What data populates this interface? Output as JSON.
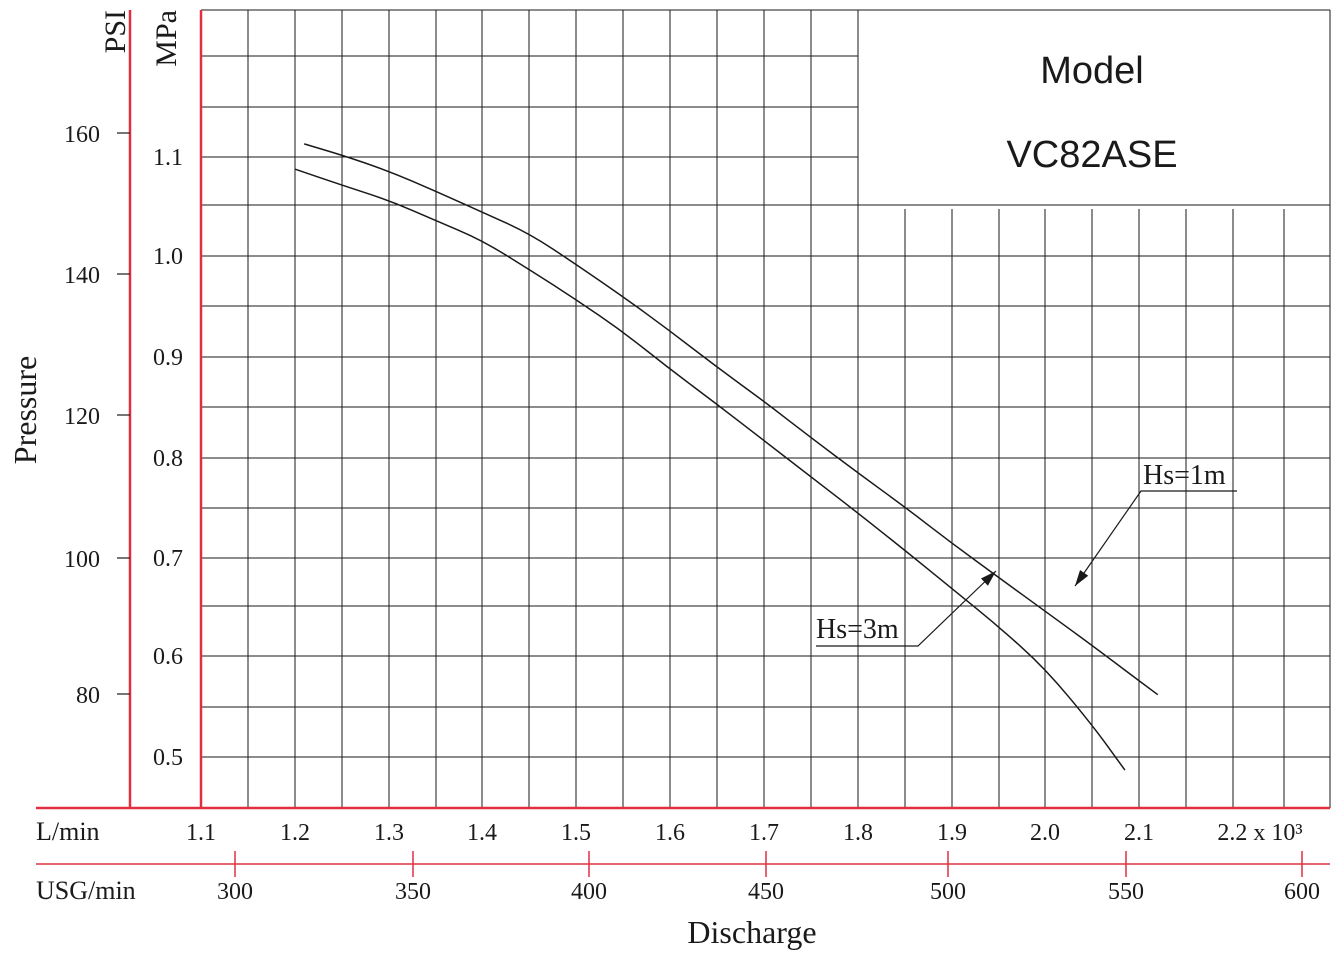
{
  "chart_data": {
    "type": "line",
    "model_label": "Model",
    "model_name": "VC82ASE",
    "ylabel": "Pressure",
    "xlabel": "Discharge",
    "left_axes": [
      {
        "unit": "PSI",
        "ticks": [
          "160",
          "140",
          "120",
          "100",
          "80"
        ]
      },
      {
        "unit": "MPa",
        "ticks": [
          "1.1",
          "1.0",
          "0.9",
          "0.8",
          "0.7",
          "0.6",
          "0.5"
        ]
      }
    ],
    "bottom_axes": [
      {
        "unit": "L/min",
        "ticks": [
          "1.1",
          "1.2",
          "1.3",
          "1.4",
          "1.5",
          "1.6",
          "1.7",
          "1.8",
          "1.9",
          "2.0",
          "2.1",
          "2.2 x 10³"
        ]
      },
      {
        "unit": "USG/min",
        "ticks": [
          "300",
          "350",
          "400",
          "450",
          "500",
          "550",
          "600"
        ]
      }
    ],
    "xlim": [
      1.1,
      2.2
    ],
    "ylim": [
      0.5,
      1.1
    ],
    "series": [
      {
        "name": "Hs=1m",
        "x": [
          1.21,
          1.25,
          1.3,
          1.35,
          1.4,
          1.45,
          1.5,
          1.55,
          1.6,
          1.65,
          1.7,
          1.75,
          1.8,
          1.85,
          1.9,
          1.95,
          2.0,
          2.05,
          2.12
        ],
        "y": [
          1.113,
          1.102,
          1.086,
          1.066,
          1.045,
          1.024,
          0.993,
          0.961,
          0.927,
          0.891,
          0.857,
          0.821,
          0.786,
          0.752,
          0.716,
          0.682,
          0.648,
          0.614,
          0.565
        ]
      },
      {
        "name": "Hs=3m",
        "x": [
          1.2,
          1.25,
          1.3,
          1.35,
          1.4,
          1.45,
          1.5,
          1.55,
          1.6,
          1.65,
          1.7,
          1.75,
          1.8,
          1.85,
          1.9,
          1.95,
          2.0,
          2.05,
          2.085
        ],
        "y": [
          1.088,
          1.072,
          1.057,
          1.037,
          1.017,
          0.988,
          0.958,
          0.926,
          0.889,
          0.854,
          0.818,
          0.782,
          0.746,
          0.709,
          0.671,
          0.633,
          0.591,
          0.535,
          0.49
        ]
      }
    ],
    "colors": {
      "axis_line": "#e03040",
      "grid": "#1a1a1a",
      "curve": "#1a1a1a"
    }
  }
}
